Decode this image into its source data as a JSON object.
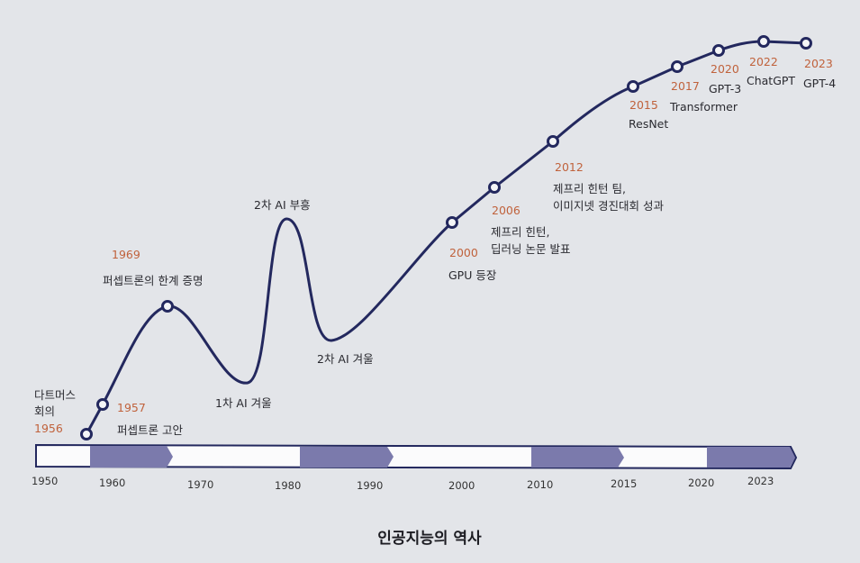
{
  "title": "인공지능의 역사",
  "colors": {
    "line": "#23285e",
    "year": "#c0623c",
    "band": "#7b7aac",
    "background": "#e3e5e9"
  },
  "events": [
    {
      "year": "1956",
      "lines": [
        "다트머스",
        "회의"
      ]
    },
    {
      "year": "1957",
      "lines": [
        "퍼셉트론 고안"
      ]
    },
    {
      "year": "1969",
      "lines": [
        "퍼셉트론의 한계 증명"
      ]
    },
    {
      "year": "",
      "lines": [
        "1차 AI 겨울"
      ]
    },
    {
      "year": "",
      "lines": [
        "2차 AI 부흥"
      ]
    },
    {
      "year": "",
      "lines": [
        "2차 AI 겨울"
      ]
    },
    {
      "year": "2000",
      "lines": [
        "GPU 등장"
      ]
    },
    {
      "year": "2006",
      "lines": [
        "제프리 힌턴,",
        "딥러닝 논문 발표"
      ]
    },
    {
      "year": "2012",
      "lines": [
        "제프리 힌턴 팀,",
        "이미지넷 경진대회 성과"
      ]
    },
    {
      "year": "2015",
      "lines": [
        "ResNet"
      ]
    },
    {
      "year": "2017",
      "lines": [
        "Transformer"
      ]
    },
    {
      "year": "2020",
      "lines": [
        "GPT-3"
      ]
    },
    {
      "year": "2022",
      "lines": [
        "ChatGPT"
      ]
    },
    {
      "year": "2023",
      "lines": [
        "GPT-4"
      ]
    }
  ],
  "axis_ticks": [
    "1950",
    "1960",
    "1970",
    "1980",
    "1990",
    "2000",
    "2010",
    "2015",
    "2020",
    "2023"
  ]
}
